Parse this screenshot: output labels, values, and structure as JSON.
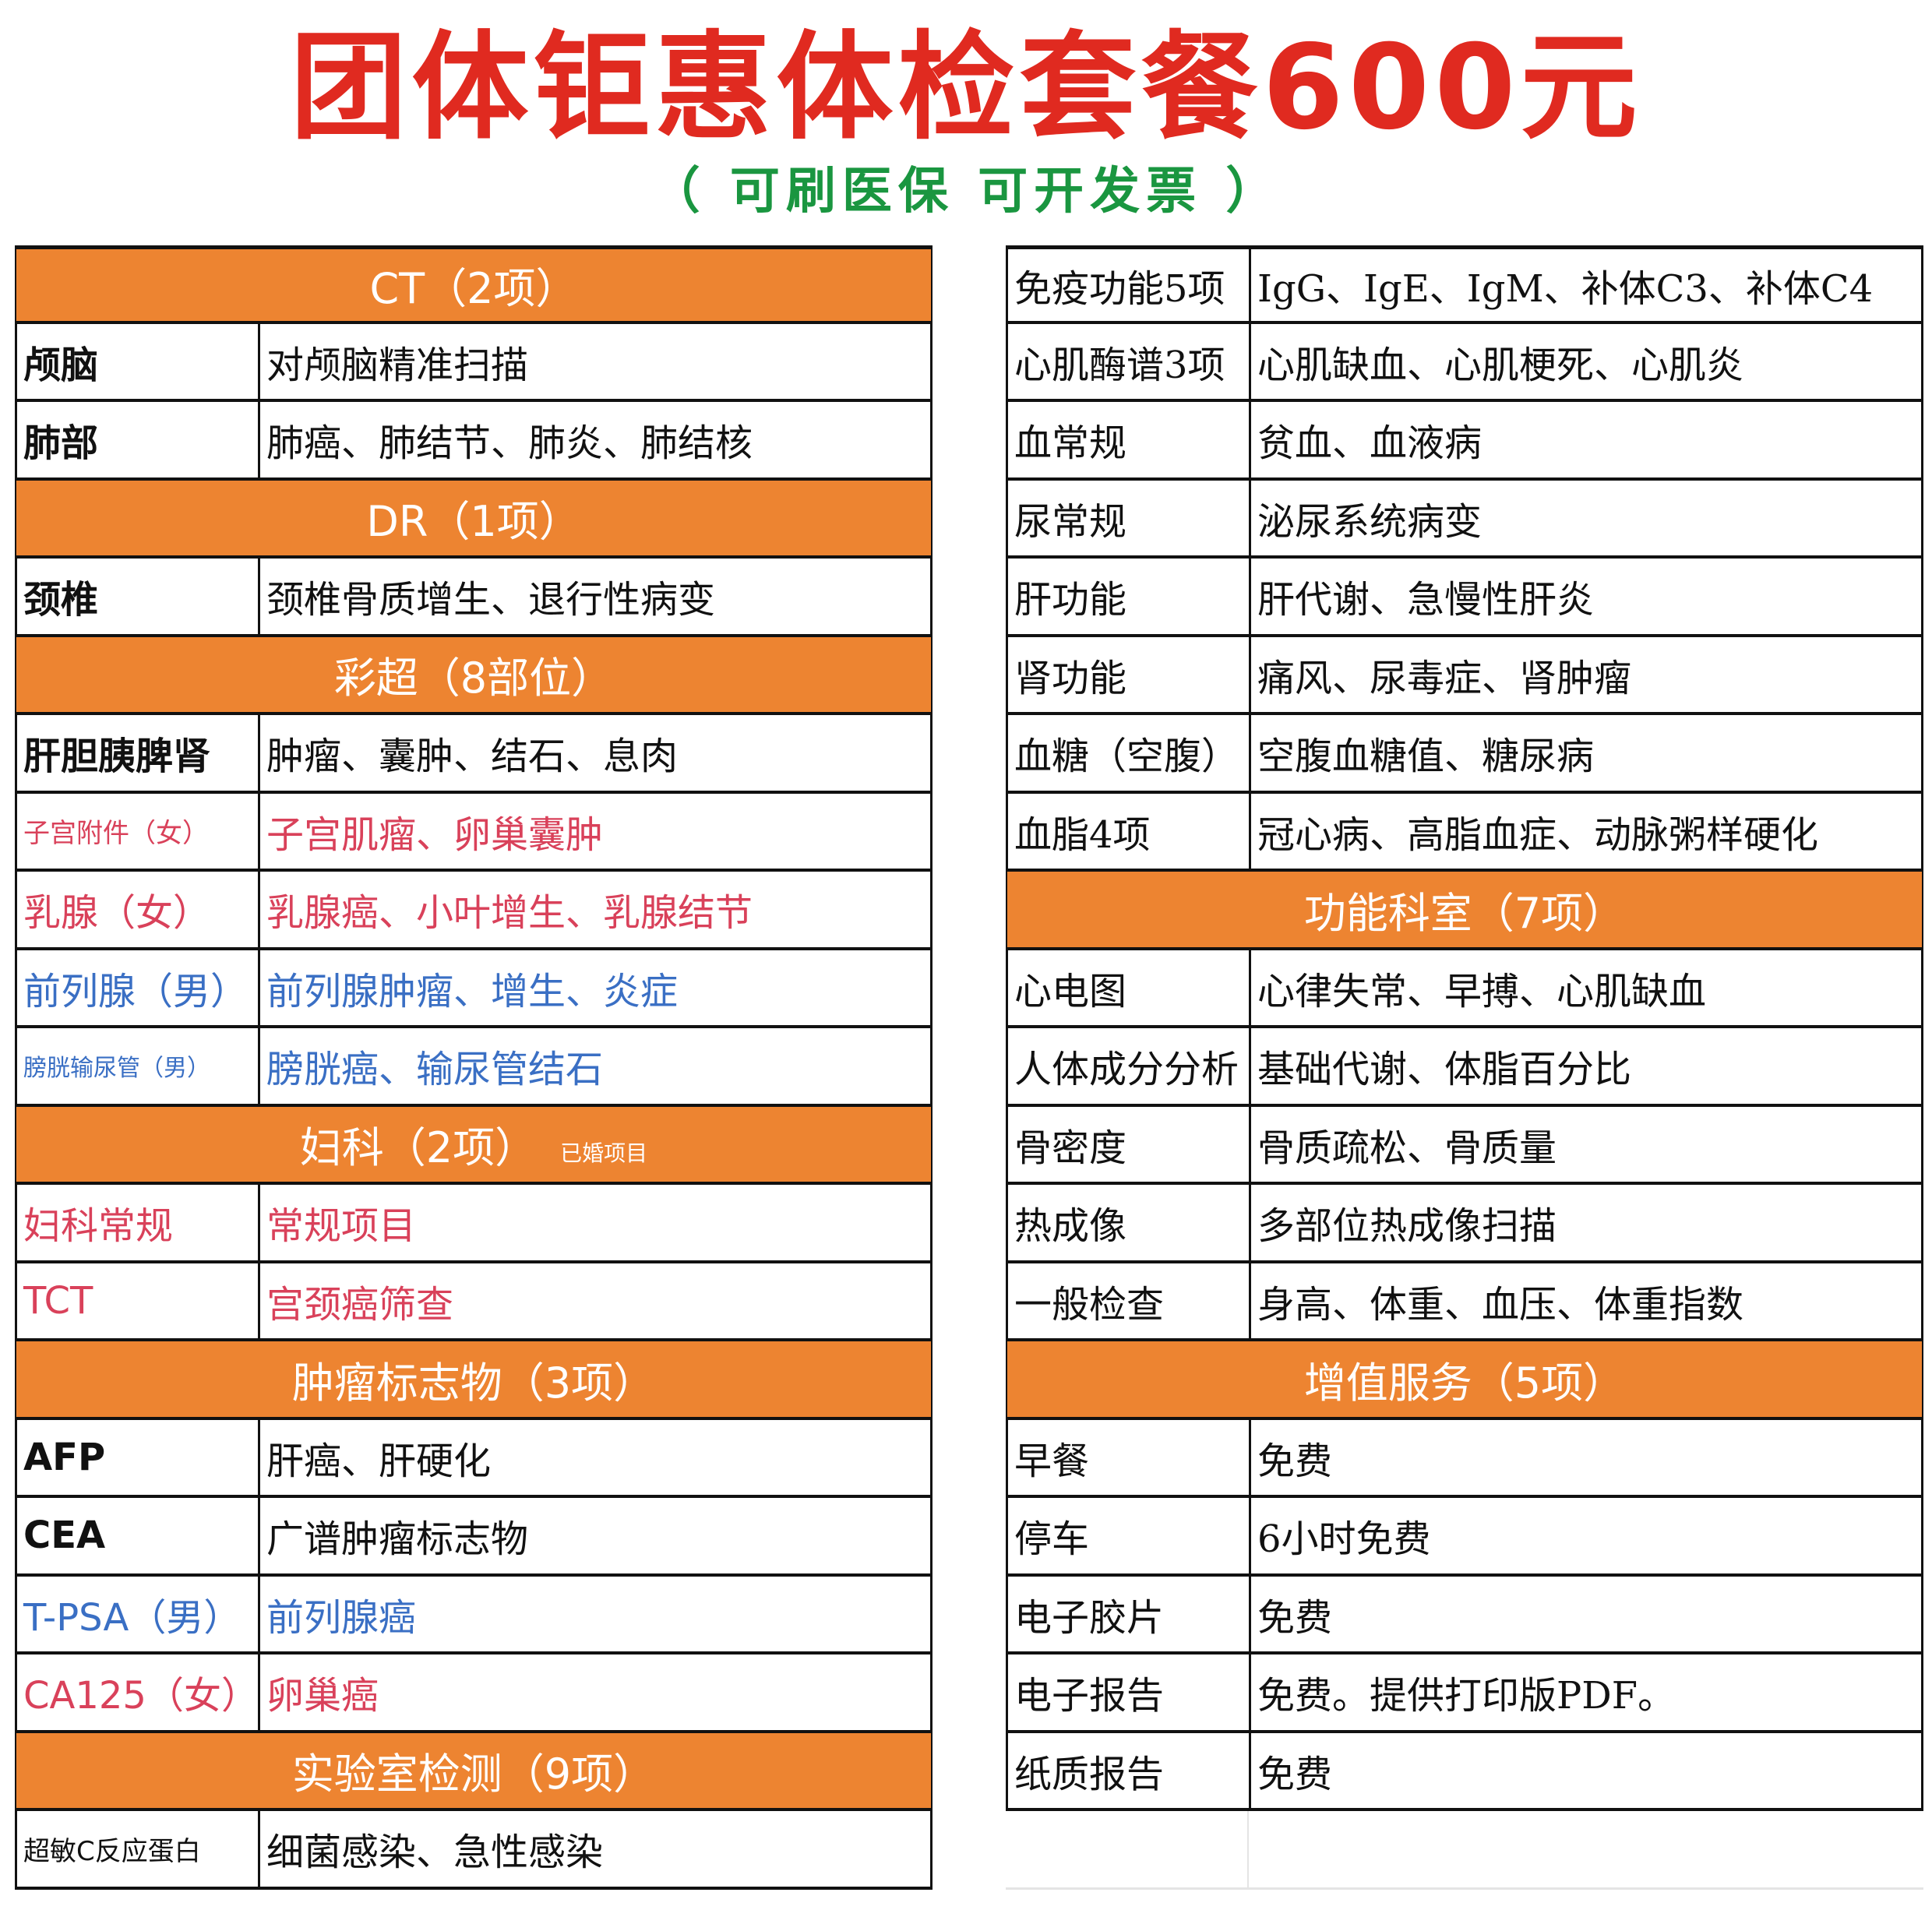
{
  "title": "团体钜惠体检套餐600元",
  "subtitle": "（ 可刷医保 可开发票 ）",
  "colors": {
    "header_bg": "#ED8431",
    "title": "#E02A20",
    "subtitle": "#1A9640",
    "female": "#D9415A",
    "male": "#3A6FC4"
  },
  "left": [
    {
      "type": "header",
      "title": "CT（2项）"
    },
    {
      "type": "item",
      "name": "颅脑",
      "desc": "对颅脑精准扫描",
      "color": "black"
    },
    {
      "type": "item",
      "name": "肺部",
      "desc": "肺癌、肺结节、肺炎、肺结核",
      "color": "black"
    },
    {
      "type": "header",
      "title": "DR（1项）"
    },
    {
      "type": "item",
      "name": "颈椎",
      "desc": "颈椎骨质增生、退行性病变",
      "color": "black"
    },
    {
      "type": "header",
      "title": "彩超（8部位）"
    },
    {
      "type": "item",
      "name": "肝胆胰脾肾",
      "desc": "肿瘤、囊肿、结石、息肉",
      "color": "black"
    },
    {
      "type": "item",
      "name": "子宫附件（女）",
      "desc": "子宫肌瘤、卵巢囊肿",
      "color": "red"
    },
    {
      "type": "item",
      "name": "乳腺（女）",
      "desc": "乳腺癌、小叶增生、乳腺结节",
      "color": "red"
    },
    {
      "type": "item",
      "name": "前列腺（男）",
      "desc": "前列腺肿瘤、增生、炎症",
      "color": "blue"
    },
    {
      "type": "item",
      "name": "膀胱输尿管（男）",
      "desc": "膀胱癌、输尿管结石",
      "color": "blue"
    },
    {
      "type": "header",
      "title": "妇科（2项）",
      "note": "已婚项目"
    },
    {
      "type": "item",
      "name": "妇科常规",
      "desc": "常规项目",
      "color": "red"
    },
    {
      "type": "item",
      "name": "TCT",
      "desc": "宫颈癌筛查",
      "color": "red"
    },
    {
      "type": "header",
      "title": "肿瘤标志物（3项）"
    },
    {
      "type": "item",
      "name": "AFP",
      "desc": "肝癌、肝硬化",
      "color": "black"
    },
    {
      "type": "item",
      "name": "CEA",
      "desc": "广谱肿瘤标志物",
      "color": "black"
    },
    {
      "type": "item",
      "name": "T-PSA（男）",
      "desc": "前列腺癌",
      "color": "blue"
    },
    {
      "type": "item",
      "name": "CA125（女）",
      "desc": "卵巢癌",
      "color": "red"
    },
    {
      "type": "header",
      "title": "实验室检测（9项）"
    },
    {
      "type": "item",
      "name": "超敏C反应蛋白",
      "desc": "细菌感染、急性感染",
      "color": "black"
    }
  ],
  "right": [
    {
      "type": "item",
      "name": "免疫功能5项",
      "desc": "IgG、IgE、IgM、补体C3、补体C4",
      "color": "black"
    },
    {
      "type": "item",
      "name": "心肌酶谱3项",
      "desc": "心肌缺血、心肌梗死、心肌炎",
      "color": "black"
    },
    {
      "type": "item",
      "name": "血常规",
      "desc": "贫血、血液病",
      "color": "black"
    },
    {
      "type": "item",
      "name": "尿常规",
      "desc": "泌尿系统病变",
      "color": "black"
    },
    {
      "type": "item",
      "name": "肝功能",
      "desc": "肝代谢、急慢性肝炎",
      "color": "black"
    },
    {
      "type": "item",
      "name": "肾功能",
      "desc": "痛风、尿毒症、肾肿瘤",
      "color": "black"
    },
    {
      "type": "item",
      "name": "血糖（空腹）",
      "desc": "空腹血糖值、糖尿病",
      "color": "black"
    },
    {
      "type": "item",
      "name": "血脂4项",
      "desc": "冠心病、高脂血症、动脉粥样硬化",
      "color": "black"
    },
    {
      "type": "header",
      "title": "功能科室（7项）"
    },
    {
      "type": "item",
      "name": "心电图",
      "desc": "心律失常、早搏、心肌缺血",
      "color": "black"
    },
    {
      "type": "item",
      "name": "人体成分分析",
      "desc": "基础代谢、体脂百分比",
      "color": "black"
    },
    {
      "type": "item",
      "name": "骨密度",
      "desc": "骨质疏松、骨质量",
      "color": "black"
    },
    {
      "type": "item",
      "name": "热成像",
      "desc": "多部位热成像扫描",
      "color": "black"
    },
    {
      "type": "item",
      "name": "一般检查",
      "desc": "身高、体重、血压、体重指数",
      "color": "black"
    },
    {
      "type": "header",
      "title": "增值服务（5项）"
    },
    {
      "type": "item",
      "name": "早餐",
      "desc": "免费",
      "color": "black"
    },
    {
      "type": "item",
      "name": "停车",
      "desc": "6小时免费",
      "color": "black"
    },
    {
      "type": "item",
      "name": "电子胶片",
      "desc": "免费",
      "color": "black"
    },
    {
      "type": "item",
      "name": "电子报告",
      "desc": "免费。提供打印版PDF。",
      "color": "black"
    },
    {
      "type": "item",
      "name": "纸质报告",
      "desc": "免费",
      "color": "black"
    },
    {
      "type": "empty"
    }
  ]
}
